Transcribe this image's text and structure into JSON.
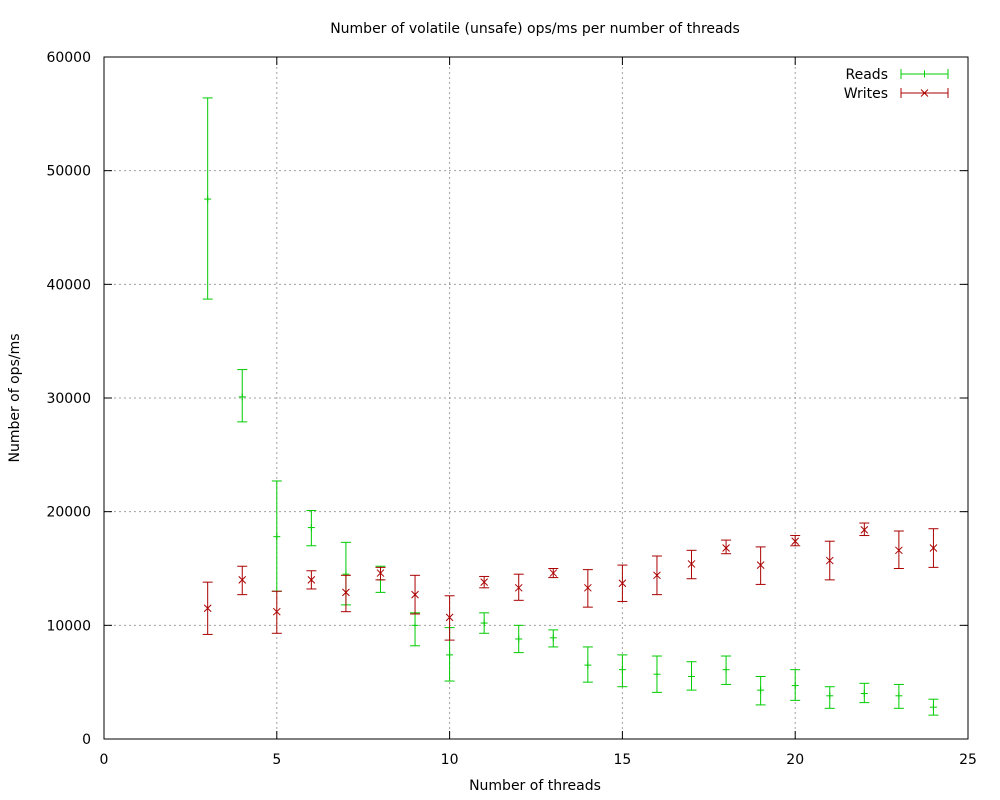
{
  "chart_data": {
    "type": "scatter",
    "title": "Number of volatile (unsafe) ops/ms per number of threads",
    "xlabel": "Number of threads",
    "ylabel": "Number of ops/ms",
    "xlim": [
      0,
      25
    ],
    "ylim": [
      0,
      60000
    ],
    "x_ticks": [
      "0",
      "5",
      "10",
      "15",
      "20",
      "25"
    ],
    "y_ticks": [
      "0",
      "10000",
      "20000",
      "30000",
      "40000",
      "50000",
      "60000"
    ],
    "grid": true,
    "legend_position": "top-right",
    "series": [
      {
        "name": "Reads",
        "color": "#00cc00",
        "marker": "plus",
        "points": [
          {
            "x": 3,
            "y": 47500,
            "low": 38700,
            "high": 56400
          },
          {
            "x": 4,
            "y": 30100,
            "low": 27900,
            "high": 32500
          },
          {
            "x": 5,
            "y": 17800,
            "low": 13000,
            "high": 22700
          },
          {
            "x": 6,
            "y": 18600,
            "low": 17000,
            "high": 20100
          },
          {
            "x": 7,
            "y": 14500,
            "low": 11800,
            "high": 17300
          },
          {
            "x": 8,
            "y": 14000,
            "low": 12900,
            "high": 15200
          },
          {
            "x": 9,
            "y": 10000,
            "low": 8200,
            "high": 11100
          },
          {
            "x": 10,
            "y": 7400,
            "low": 5100,
            "high": 9800
          },
          {
            "x": 11,
            "y": 10200,
            "low": 9300,
            "high": 11100
          },
          {
            "x": 12,
            "y": 8800,
            "low": 7600,
            "high": 10000
          },
          {
            "x": 13,
            "y": 8900,
            "low": 8100,
            "high": 9600
          },
          {
            "x": 14,
            "y": 6500,
            "low": 5000,
            "high": 8100
          },
          {
            "x": 15,
            "y": 6100,
            "low": 4600,
            "high": 7400
          },
          {
            "x": 16,
            "y": 5700,
            "low": 4100,
            "high": 7300
          },
          {
            "x": 17,
            "y": 5500,
            "low": 4300,
            "high": 6800
          },
          {
            "x": 18,
            "y": 6100,
            "low": 4800,
            "high": 7300
          },
          {
            "x": 19,
            "y": 4300,
            "low": 3000,
            "high": 5500
          },
          {
            "x": 20,
            "y": 4700,
            "low": 3400,
            "high": 6100
          },
          {
            "x": 21,
            "y": 3800,
            "low": 2700,
            "high": 4600
          },
          {
            "x": 22,
            "y": 4000,
            "low": 3200,
            "high": 4900
          },
          {
            "x": 23,
            "y": 3800,
            "low": 2700,
            "high": 4800
          },
          {
            "x": 24,
            "y": 2800,
            "low": 2100,
            "high": 3500
          }
        ]
      },
      {
        "name": "Writes",
        "color": "#aa0000",
        "marker": "cross",
        "points": [
          {
            "x": 3,
            "y": 11500,
            "low": 9200,
            "high": 13800
          },
          {
            "x": 4,
            "y": 14000,
            "low": 12700,
            "high": 15200
          },
          {
            "x": 5,
            "y": 11200,
            "low": 9300,
            "high": 13000
          },
          {
            "x": 6,
            "y": 14000,
            "low": 13200,
            "high": 14800
          },
          {
            "x": 7,
            "y": 12900,
            "low": 11200,
            "high": 14400
          },
          {
            "x": 8,
            "y": 14600,
            "low": 14000,
            "high": 15100
          },
          {
            "x": 9,
            "y": 12700,
            "low": 11000,
            "high": 14400
          },
          {
            "x": 10,
            "y": 10700,
            "low": 8700,
            "high": 12600
          },
          {
            "x": 11,
            "y": 13800,
            "low": 13300,
            "high": 14300
          },
          {
            "x": 12,
            "y": 13300,
            "low": 12200,
            "high": 14500
          },
          {
            "x": 13,
            "y": 14600,
            "low": 14200,
            "high": 15000
          },
          {
            "x": 14,
            "y": 13300,
            "low": 11600,
            "high": 14900
          },
          {
            "x": 15,
            "y": 13700,
            "low": 12100,
            "high": 15300
          },
          {
            "x": 16,
            "y": 14400,
            "low": 12700,
            "high": 16100
          },
          {
            "x": 17,
            "y": 15400,
            "low": 14100,
            "high": 16600
          },
          {
            "x": 18,
            "y": 16800,
            "low": 16300,
            "high": 17500
          },
          {
            "x": 19,
            "y": 15300,
            "low": 13600,
            "high": 16900
          },
          {
            "x": 20,
            "y": 17400,
            "low": 17000,
            "high": 17900
          },
          {
            "x": 21,
            "y": 15700,
            "low": 14000,
            "high": 17400
          },
          {
            "x": 22,
            "y": 18400,
            "low": 17900,
            "high": 19000
          },
          {
            "x": 23,
            "y": 16600,
            "low": 15000,
            "high": 18300
          },
          {
            "x": 24,
            "y": 16800,
            "low": 15100,
            "high": 18500
          }
        ]
      }
    ]
  }
}
